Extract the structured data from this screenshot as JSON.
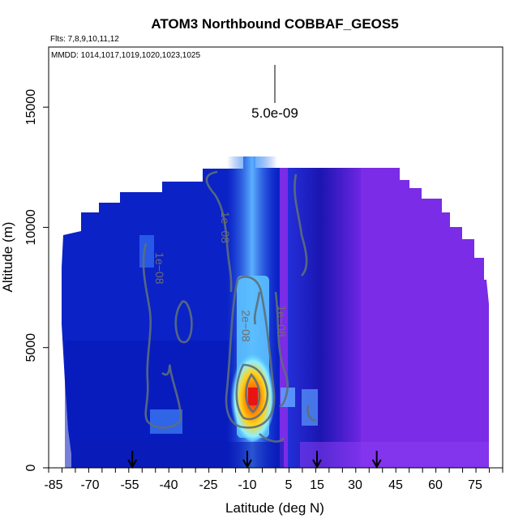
{
  "chart_data": {
    "type": "heatmap",
    "title": "ATOM3 Northbound COBBAF_GEOS5",
    "subtitle_flights": "Flts: 7,8,9,10,11,12",
    "subtitle_dates": "MMDD: 1014,1017,1019,1020,1023,1025",
    "xlabel": "Latitude (deg N)",
    "ylabel": "Altitude (m)",
    "xlim": [
      -85,
      85
    ],
    "ylim": [
      0,
      17500
    ],
    "x_ticks": [
      "-85",
      "-70",
      "-55",
      "-40",
      "-25",
      "-10",
      "5",
      "15",
      "30",
      "45",
      "60",
      "75"
    ],
    "x_tick_values": [
      -85,
      -70,
      -55,
      -40,
      -25,
      -10,
      5,
      15,
      30,
      45,
      60,
      75
    ],
    "y_ticks": [
      "0",
      "5000",
      "10000",
      "15000"
    ],
    "y_tick_values": [
      0,
      5000,
      10000,
      15000
    ],
    "scale_bar_label": "5.0e-09",
    "contour_labels": [
      {
        "text": "1e−08",
        "lat": -45,
        "alt": 8300
      },
      {
        "text": "1e−08",
        "lat": -20,
        "alt": 10000
      },
      {
        "text": "2e−08",
        "lat": -12,
        "alt": 5900
      },
      {
        "text": "1e−08",
        "lat": 1,
        "alt": 6100
      }
    ],
    "flight_arrow_latitudes": [
      -54,
      -10,
      15,
      38
    ],
    "color_features": [
      {
        "name": "southern-background",
        "lat_range": [
          -80,
          0
        ],
        "alt_range": [
          0,
          13000
        ],
        "color": "#0b21c8"
      },
      {
        "name": "tropical-column",
        "lat_range": [
          -14,
          -6
        ],
        "alt_range": [
          0,
          13500
        ],
        "color": "#3a8df0"
      },
      {
        "name": "northern-background",
        "lat_range": [
          10,
          78
        ],
        "alt_range": [
          0,
          12500
        ],
        "color": "#7a2be8"
      },
      {
        "name": "surface-max",
        "lat": -10,
        "alt": 3000,
        "color": "#ee1c1c"
      }
    ]
  }
}
